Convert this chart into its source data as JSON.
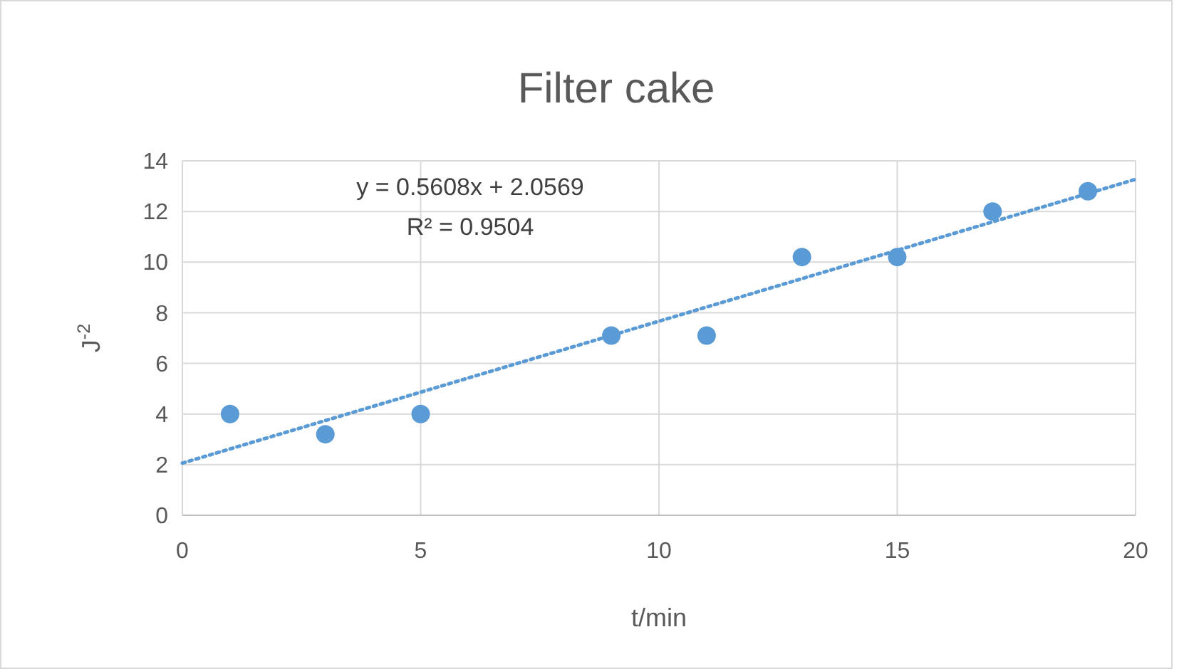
{
  "chart_data": {
    "type": "scatter",
    "title": "Filter cake",
    "xlabel": "t/min",
    "ylabel": "J$^{-2}$",
    "x": [
      1,
      3,
      5,
      9,
      11,
      13,
      15,
      17,
      19
    ],
    "series": [
      {
        "type": "scatter",
        "color": "#5b9bd5",
        "marker": "circle",
        "values": [
          4.0,
          3.2,
          4.0,
          7.1,
          7.1,
          10.2,
          10.2,
          12.0,
          12.8
        ]
      },
      {
        "type": "line",
        "color": "#5b9bd5",
        "marker": "none",
        "line_style": "dotted",
        "x": [
          0,
          20
        ],
        "values": [
          2.06,
          13.27
        ]
      }
    ],
    "annotations": [
      "y = 0.5608x + 2.0569",
      "R² = 0.9504"
    ],
    "xlim": [
      0,
      20
    ],
    "xticks": [
      0,
      5,
      10,
      15,
      20
    ],
    "ylim": [
      0,
      14
    ],
    "yticks": [
      0,
      2,
      4,
      6,
      8,
      10,
      12,
      14
    ],
    "grid": true
  }
}
